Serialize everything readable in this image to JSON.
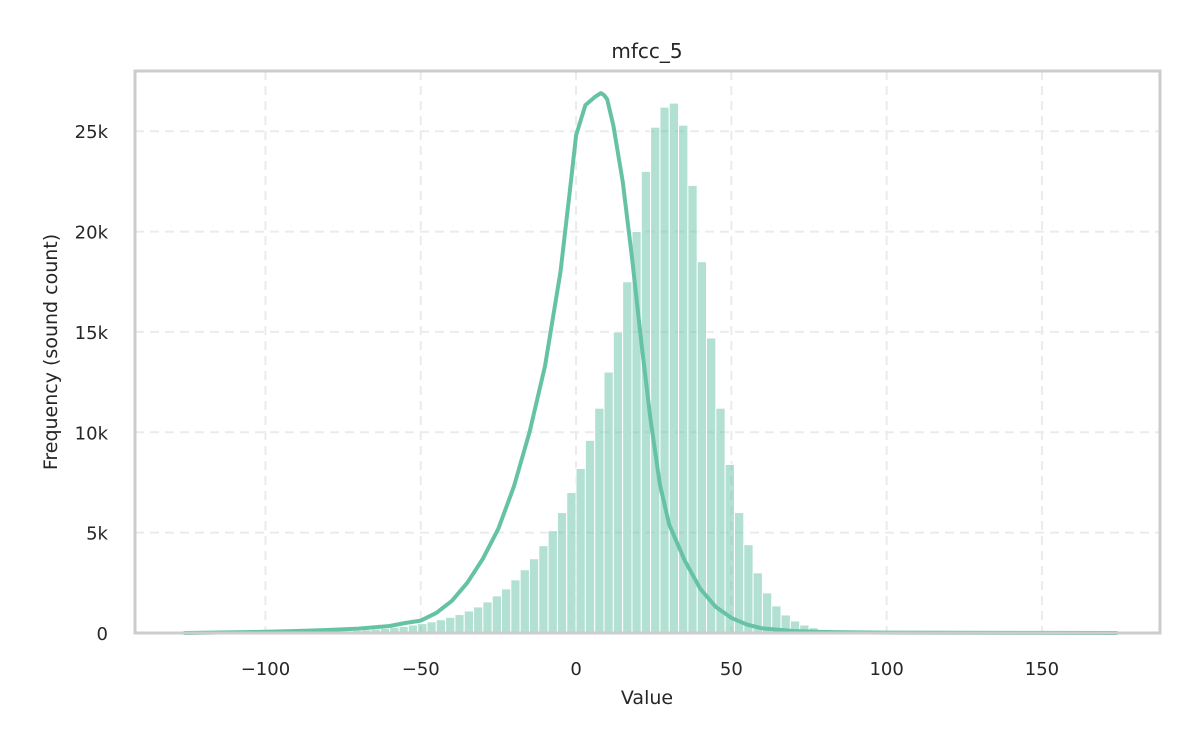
{
  "chart_data": {
    "type": "histogram",
    "title": "mfcc_5",
    "xlabel": "Value",
    "ylabel": "Frequency (sound count)",
    "xlim": [
      -142,
      188
    ],
    "ylim": [
      0,
      28000
    ],
    "x_ticks": [
      {
        "value": -100,
        "label": "−100"
      },
      {
        "value": -50,
        "label": "−50"
      },
      {
        "value": 0,
        "label": "0"
      },
      {
        "value": 50,
        "label": "50"
      },
      {
        "value": 100,
        "label": "100"
      },
      {
        "value": 150,
        "label": "150"
      }
    ],
    "y_ticks": [
      {
        "value": 0,
        "label": "0"
      },
      {
        "value": 5000,
        "label": "5k"
      },
      {
        "value": 10000,
        "label": "10k"
      },
      {
        "value": 15000,
        "label": "15k"
      },
      {
        "value": 20000,
        "label": "20k"
      },
      {
        "value": 25000,
        "label": "25k"
      }
    ],
    "grid": true,
    "bar_color": "#66c2a5",
    "bar_opacity": 0.5,
    "kde_color": "#66c2a5",
    "bins": {
      "start": -126,
      "width": 3,
      "counts": [
        20,
        20,
        20,
        20,
        20,
        20,
        20,
        20,
        20,
        20,
        25,
        30,
        40,
        50,
        60,
        70,
        90,
        110,
        130,
        160,
        190,
        230,
        280,
        330,
        400,
        470,
        560,
        660,
        780,
        920,
        1100,
        1300,
        1550,
        1850,
        2200,
        2650,
        3150,
        3700,
        4350,
        5100,
        6000,
        7000,
        8200,
        9600,
        11200,
        13000,
        15000,
        17500,
        20000,
        23000,
        25200,
        26200,
        26400,
        25300,
        22300,
        18500,
        14700,
        11200,
        8400,
        6000,
        4400,
        3000,
        2000,
        1350,
        900,
        600,
        400,
        260,
        170,
        110,
        80,
        60,
        45,
        35,
        30,
        25,
        25,
        20,
        20,
        20,
        20,
        20,
        20,
        20,
        20,
        20,
        20,
        20,
        20,
        20,
        20,
        20,
        20,
        20,
        20,
        20,
        20,
        20,
        20,
        20
      ]
    },
    "kde": {
      "x": [
        -126,
        -100,
        -90,
        -80,
        -70,
        -60,
        -55,
        -50,
        -45,
        -40,
        -35,
        -30,
        -25,
        -20,
        -15,
        -10,
        -5,
        -2,
        0,
        3,
        6,
        8,
        9,
        10,
        12,
        15,
        18,
        21,
        24,
        27,
        30,
        35,
        40,
        45,
        50,
        55,
        60,
        70,
        80,
        90,
        100,
        120,
        150,
        174
      ],
      "y": [
        0,
        60,
        100,
        150,
        220,
        350,
        500,
        620,
        1000,
        1600,
        2500,
        3700,
        5200,
        7300,
        10000,
        13300,
        18000,
        22000,
        24800,
        26300,
        26700,
        26900,
        26800,
        26600,
        25300,
        22500,
        18700,
        14500,
        10600,
        7400,
        5400,
        3600,
        2200,
        1300,
        750,
        420,
        230,
        100,
        50,
        30,
        20,
        10,
        5,
        0
      ]
    }
  }
}
